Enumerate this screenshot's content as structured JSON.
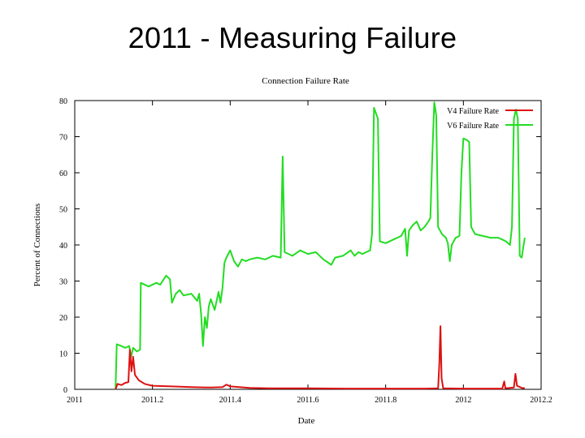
{
  "slide": {
    "title": "2011 - Measuring Failure"
  },
  "chart_data": {
    "type": "line",
    "title": "Connection Failure Rate",
    "xlabel": "Date",
    "ylabel": "Percent of Connections",
    "xlim": [
      2011.0,
      2012.2
    ],
    "ylim": [
      0,
      80
    ],
    "x_ticks": [
      2011.0,
      2011.2,
      2011.4,
      2011.6,
      2011.8,
      2012.0,
      2012.2
    ],
    "x_tick_labels": [
      "2011",
      "2011.2",
      "2011.4",
      "2011.6",
      "2011.8",
      "2012",
      "2012.2"
    ],
    "y_ticks": [
      0,
      10,
      20,
      30,
      40,
      50,
      60,
      70,
      80
    ],
    "y_tick_labels": [
      "0",
      "10",
      "20",
      "30",
      "40",
      "50",
      "60",
      "70",
      "80"
    ],
    "grid": false,
    "legend_position": "top-right",
    "series": [
      {
        "name": "V4 Failure Rate",
        "color": "#dd1111",
        "points": [
          [
            2011.105,
            0
          ],
          [
            2011.11,
            1.5
          ],
          [
            2011.12,
            1.2
          ],
          [
            2011.13,
            1.8
          ],
          [
            2011.138,
            2
          ],
          [
            2011.142,
            11
          ],
          [
            2011.146,
            5
          ],
          [
            2011.15,
            9
          ],
          [
            2011.155,
            4
          ],
          [
            2011.165,
            2.5
          ],
          [
            2011.18,
            1.5
          ],
          [
            2011.2,
            1
          ],
          [
            2011.25,
            0.8
          ],
          [
            2011.3,
            0.6
          ],
          [
            2011.35,
            0.5
          ],
          [
            2011.38,
            0.6
          ],
          [
            2011.39,
            1.3
          ],
          [
            2011.4,
            0.8
          ],
          [
            2011.45,
            0.4
          ],
          [
            2011.5,
            0.3
          ],
          [
            2011.6,
            0.3
          ],
          [
            2011.7,
            0.2
          ],
          [
            2011.8,
            0.2
          ],
          [
            2011.9,
            0.2
          ],
          [
            2011.935,
            0.3
          ],
          [
            2011.938,
            7
          ],
          [
            2011.941,
            17.5
          ],
          [
            2011.944,
            3
          ],
          [
            2011.948,
            0.3
          ],
          [
            2012.0,
            0.2
          ],
          [
            2012.1,
            0.2
          ],
          [
            2012.105,
            2.2
          ],
          [
            2012.108,
            0.3
          ],
          [
            2012.13,
            0.5
          ],
          [
            2012.134,
            4.3
          ],
          [
            2012.138,
            1
          ],
          [
            2012.15,
            0.4
          ],
          [
            2012.158,
            0.3
          ]
        ]
      },
      {
        "name": "V6 Failure Rate",
        "color": "#22dd22",
        "points": [
          [
            2011.105,
            0
          ],
          [
            2011.108,
            12.5
          ],
          [
            2011.12,
            12
          ],
          [
            2011.13,
            11.5
          ],
          [
            2011.14,
            12
          ],
          [
            2011.145,
            9
          ],
          [
            2011.15,
            11.5
          ],
          [
            2011.16,
            10.5
          ],
          [
            2011.168,
            11
          ],
          [
            2011.17,
            29.5
          ],
          [
            2011.19,
            28.5
          ],
          [
            2011.21,
            29.5
          ],
          [
            2011.22,
            29
          ],
          [
            2011.235,
            31.5
          ],
          [
            2011.245,
            30.5
          ],
          [
            2011.25,
            24
          ],
          [
            2011.26,
            26.5
          ],
          [
            2011.27,
            27.5
          ],
          [
            2011.28,
            26
          ],
          [
            2011.3,
            26.5
          ],
          [
            2011.315,
            24.5
          ],
          [
            2011.32,
            26.5
          ],
          [
            2011.325,
            21
          ],
          [
            2011.33,
            12
          ],
          [
            2011.335,
            20
          ],
          [
            2011.34,
            17
          ],
          [
            2011.345,
            23
          ],
          [
            2011.35,
            25
          ],
          [
            2011.36,
            22
          ],
          [
            2011.37,
            27
          ],
          [
            2011.375,
            24
          ],
          [
            2011.38,
            28
          ],
          [
            2011.385,
            35
          ],
          [
            2011.39,
            36.5
          ],
          [
            2011.4,
            38.5
          ],
          [
            2011.41,
            35.5
          ],
          [
            2011.42,
            34
          ],
          [
            2011.43,
            36
          ],
          [
            2011.44,
            35.5
          ],
          [
            2011.45,
            36
          ],
          [
            2011.47,
            36.5
          ],
          [
            2011.49,
            36
          ],
          [
            2011.51,
            37
          ],
          [
            2011.53,
            36.5
          ],
          [
            2011.535,
            64.5
          ],
          [
            2011.54,
            38
          ],
          [
            2011.56,
            37
          ],
          [
            2011.58,
            38.5
          ],
          [
            2011.6,
            37.5
          ],
          [
            2011.62,
            38
          ],
          [
            2011.64,
            36
          ],
          [
            2011.66,
            34.5
          ],
          [
            2011.67,
            36.5
          ],
          [
            2011.69,
            37
          ],
          [
            2011.71,
            38.5
          ],
          [
            2011.72,
            37
          ],
          [
            2011.73,
            38
          ],
          [
            2011.74,
            37.5
          ],
          [
            2011.75,
            38
          ],
          [
            2011.76,
            38.5
          ],
          [
            2011.765,
            43
          ],
          [
            2011.77,
            78
          ],
          [
            2011.775,
            76.5
          ],
          [
            2011.78,
            75
          ],
          [
            2011.785,
            41
          ],
          [
            2011.8,
            40.5
          ],
          [
            2011.82,
            41.5
          ],
          [
            2011.84,
            42.5
          ],
          [
            2011.85,
            44.5
          ],
          [
            2011.855,
            37
          ],
          [
            2011.86,
            44
          ],
          [
            2011.87,
            45.5
          ],
          [
            2011.88,
            46.5
          ],
          [
            2011.89,
            44
          ],
          [
            2011.9,
            45
          ],
          [
            2011.91,
            46.5
          ],
          [
            2011.915,
            47.5
          ],
          [
            2011.92,
            65
          ],
          [
            2011.925,
            79.5
          ],
          [
            2011.93,
            76
          ],
          [
            2011.935,
            45
          ],
          [
            2011.945,
            43
          ],
          [
            2011.955,
            42
          ],
          [
            2011.96,
            40.5
          ],
          [
            2011.965,
            35.5
          ],
          [
            2011.97,
            40
          ],
          [
            2011.98,
            42
          ],
          [
            2011.99,
            42.5
          ],
          [
            2011.995,
            60
          ],
          [
            2012.0,
            69.5
          ],
          [
            2012.01,
            69
          ],
          [
            2012.015,
            68.5
          ],
          [
            2012.02,
            45
          ],
          [
            2012.03,
            43
          ],
          [
            2012.05,
            42.5
          ],
          [
            2012.07,
            42
          ],
          [
            2012.09,
            42
          ],
          [
            2012.1,
            41.5
          ],
          [
            2012.11,
            41
          ],
          [
            2012.12,
            40
          ],
          [
            2012.125,
            45
          ],
          [
            2012.13,
            75
          ],
          [
            2012.135,
            77.5
          ],
          [
            2012.14,
            75
          ],
          [
            2012.145,
            37
          ],
          [
            2012.15,
            36.5
          ],
          [
            2012.155,
            40
          ],
          [
            2012.158,
            42
          ]
        ]
      }
    ]
  }
}
